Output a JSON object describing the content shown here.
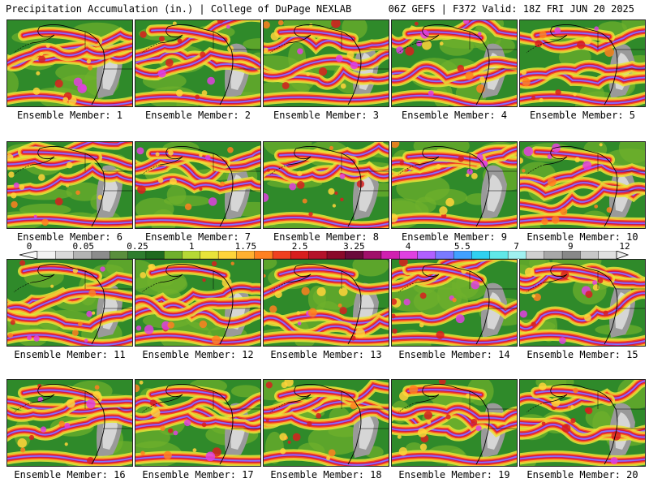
{
  "header": {
    "left": "Precipitation Accumulation (in.) | College of DuPage NEXLAB",
    "right": "06Z GEFS | F372 Valid: 18Z FRI JUN 20 2025"
  },
  "colorbar": {
    "labels": [
      "0",
      "0.05",
      "0.25",
      "1",
      "1.75",
      "2.5",
      "3.25",
      "4",
      "5.5",
      "7",
      "9",
      "12"
    ],
    "colors": [
      "#f2f2f2",
      "#d9d9d9",
      "#b3b3b3",
      "#8c8c8c",
      "#5a8f3c",
      "#2e7d2e",
      "#1f6b1f",
      "#6fb02c",
      "#b6d935",
      "#e8e43a",
      "#ffd43a",
      "#ffb030",
      "#ff8020",
      "#f04020",
      "#d81e1e",
      "#b4122a",
      "#8a0a2a",
      "#6a0a3a",
      "#a0106a",
      "#d020b0",
      "#e040e0",
      "#b060ff",
      "#7a7aff",
      "#40a0ff",
      "#30d0f0",
      "#60e8e8",
      "#a0f0f0",
      "#d0d0d0",
      "#a8a8a8",
      "#888888",
      "#c8c8c8",
      "#e0e0e0"
    ]
  },
  "panels": [
    {
      "caption": "Ensemble Member: 1"
    },
    {
      "caption": "Ensemble Member: 2"
    },
    {
      "caption": "Ensemble Member: 3"
    },
    {
      "caption": "Ensemble Member: 4"
    },
    {
      "caption": "Ensemble Member: 5"
    },
    {
      "caption": "Ensemble Member: 6"
    },
    {
      "caption": "Ensemble Member: 7"
    },
    {
      "caption": "Ensemble Member: 8"
    },
    {
      "caption": "Ensemble Member: 9"
    },
    {
      "caption": "Ensemble Member: 10"
    },
    {
      "caption": "Ensemble Member: 11"
    },
    {
      "caption": "Ensemble Member: 12"
    },
    {
      "caption": "Ensemble Member: 13"
    },
    {
      "caption": "Ensemble Member: 14"
    },
    {
      "caption": "Ensemble Member: 15"
    },
    {
      "caption": "Ensemble Member: 16"
    },
    {
      "caption": "Ensemble Member: 17"
    },
    {
      "caption": "Ensemble Member: 18"
    },
    {
      "caption": "Ensemble Member: 19"
    },
    {
      "caption": "Ensemble Member: 20"
    }
  ]
}
